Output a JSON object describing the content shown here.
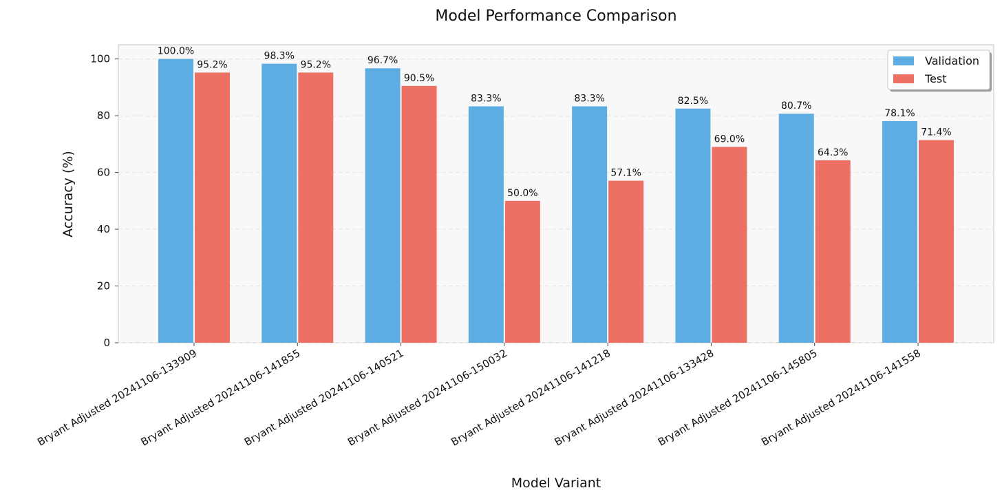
{
  "chart_data": {
    "type": "bar",
    "title": "Model Performance Comparison",
    "xlabel": "Model Variant",
    "ylabel": "Accuracy (%)",
    "ylim": [
      0,
      105
    ],
    "yticks": [
      0,
      20,
      40,
      60,
      80,
      100
    ],
    "grid": true,
    "legend_position": "top-right",
    "categories": [
      "Bryant Adjusted 20241106-133909",
      "Bryant Adjusted 20241106-141855",
      "Bryant Adjusted 20241106-140521",
      "Bryant Adjusted 20241106-150032",
      "Bryant Adjusted 20241106-141218",
      "Bryant Adjusted 20241106-133428",
      "Bryant Adjusted 20241106-145805",
      "Bryant Adjusted 20241106-141558"
    ],
    "series": [
      {
        "name": "Validation",
        "color": "#5dade2",
        "values": [
          100.0,
          98.3,
          96.7,
          83.3,
          83.3,
          82.5,
          80.7,
          78.1
        ],
        "labels": [
          "100.0%",
          "98.3%",
          "96.7%",
          "83.3%",
          "83.3%",
          "82.5%",
          "80.7%",
          "78.1%"
        ]
      },
      {
        "name": "Test",
        "color": "#ec7063",
        "values": [
          95.2,
          95.2,
          90.5,
          50.0,
          57.1,
          69.0,
          64.3,
          71.4
        ],
        "labels": [
          "95.2%",
          "95.2%",
          "90.5%",
          "50.0%",
          "57.1%",
          "69.0%",
          "64.3%",
          "71.4%"
        ]
      }
    ]
  }
}
